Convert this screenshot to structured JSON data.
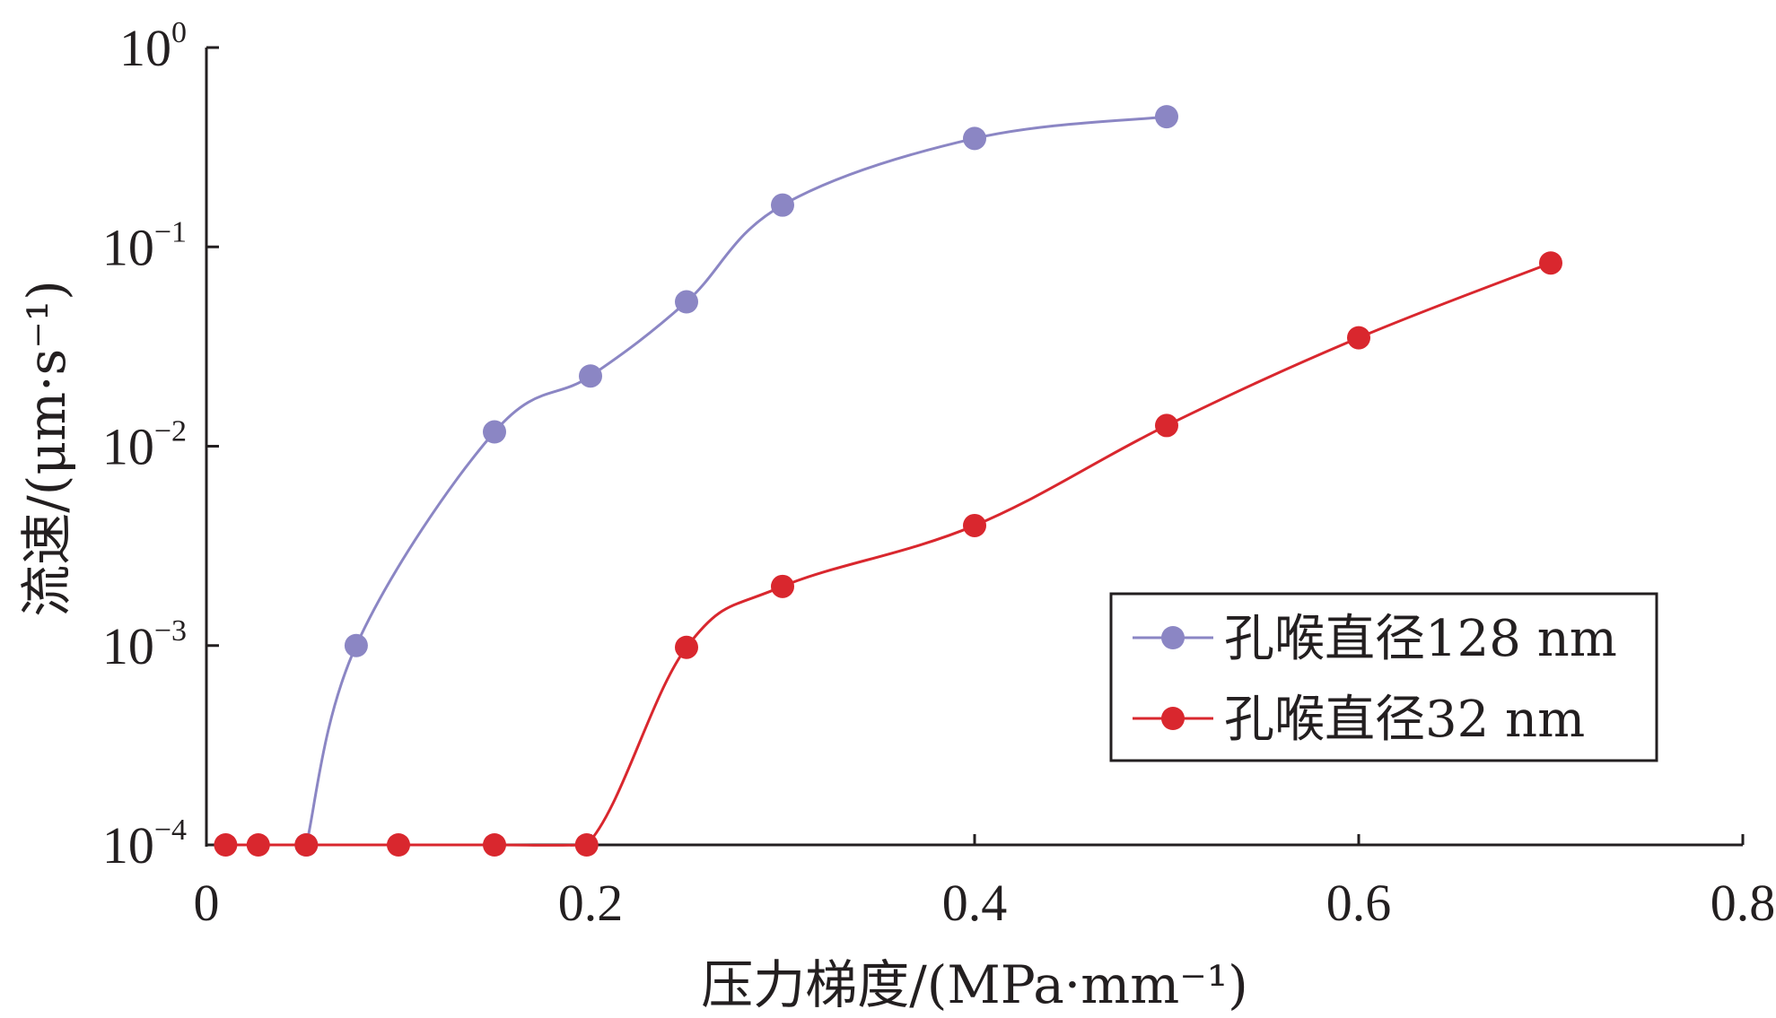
{
  "chart_data": {
    "type": "line",
    "xlabel": "压力梯度/(MPa·mm⁻¹)",
    "ylabel": "流速/(μm·s⁻¹)",
    "xlim": [
      0,
      0.8
    ],
    "ylim": [
      0.0001,
      1
    ],
    "y_scale": "log",
    "x_ticks": [
      {
        "value": 0,
        "label": "0"
      },
      {
        "value": 0.2,
        "label": "0.2"
      },
      {
        "value": 0.4,
        "label": "0.4"
      },
      {
        "value": 0.6,
        "label": "0.6"
      },
      {
        "value": 0.8,
        "label": "0.8"
      }
    ],
    "y_ticks": [
      {
        "value": 1,
        "base": "10",
        "exp": "0"
      },
      {
        "value": 0.1,
        "base": "10",
        "exp": "−1"
      },
      {
        "value": 0.01,
        "base": "10",
        "exp": "−2"
      },
      {
        "value": 0.001,
        "base": "10",
        "exp": "−3"
      },
      {
        "value": 0.0001,
        "base": "10",
        "exp": "−4"
      }
    ],
    "legend_position": "lower-right",
    "grid": false,
    "series": [
      {
        "name": "孔喉直径128 nm",
        "color": "#8b86c4",
        "points": [
          [
            0.052,
            0.0001
          ],
          [
            0.078,
            0.001
          ],
          [
            0.15,
            0.0118
          ],
          [
            0.2,
            0.0225
          ],
          [
            0.25,
            0.053
          ],
          [
            0.3,
            0.162
          ],
          [
            0.4,
            0.35
          ],
          [
            0.5,
            0.45
          ]
        ]
      },
      {
        "name": "孔喉直径32 nm",
        "color": "#d9272e",
        "points": [
          [
            0.01,
            0.0001
          ],
          [
            0.027,
            0.0001
          ],
          [
            0.052,
            0.0001
          ],
          [
            0.1,
            0.0001
          ],
          [
            0.15,
            0.0001
          ],
          [
            0.198,
            0.0001
          ],
          [
            0.25,
            0.00098
          ],
          [
            0.3,
            0.00198
          ],
          [
            0.4,
            0.004
          ],
          [
            0.5,
            0.0127
          ],
          [
            0.6,
            0.035
          ],
          [
            0.7,
            0.083
          ]
        ]
      }
    ]
  }
}
